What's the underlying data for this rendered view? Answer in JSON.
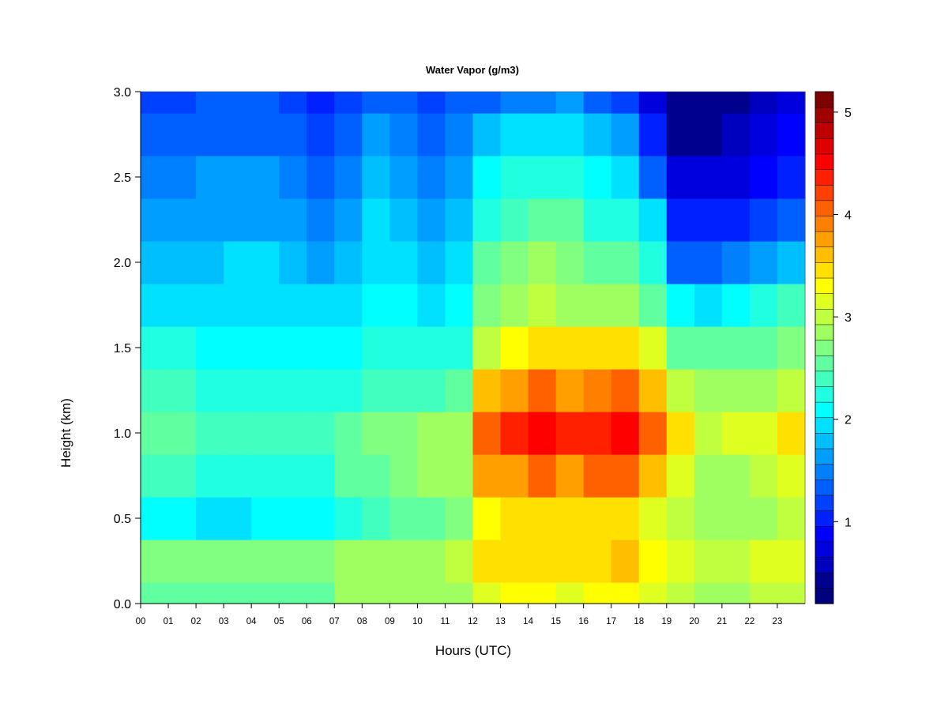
{
  "chart_data": {
    "type": "heatmap",
    "title": "Water Vapor (g/m3)",
    "xlabel": "Hours (UTC)",
    "ylabel": "Height (km)",
    "xlim": [
      0,
      24
    ],
    "ylim": [
      0,
      3.0
    ],
    "x_ticks": [
      "00",
      "01",
      "02",
      "03",
      "04",
      "05",
      "06",
      "07",
      "08",
      "09",
      "10",
      "11",
      "12",
      "13",
      "14",
      "15",
      "16",
      "17",
      "18",
      "19",
      "20",
      "21",
      "22",
      "23"
    ],
    "y_ticks": [
      "0.0",
      "0.5",
      "1.0",
      "1.5",
      "2.0",
      "2.5",
      "3.0"
    ],
    "colorbar": {
      "min": 0.2,
      "max": 5.2,
      "ticks": [
        "1",
        "2",
        "3",
        "4",
        "5"
      ],
      "levels": [
        "#00007f",
        "#00008f",
        "#0000bf",
        "#0000df",
        "#0000ff",
        "#0020ff",
        "#0040ff",
        "#0060ff",
        "#0080ff",
        "#009fff",
        "#00bfff",
        "#00e0ff",
        "#00ffff",
        "#20ffdf",
        "#40ffbf",
        "#60ff9f",
        "#80ff80",
        "#9fff60",
        "#c0ff40",
        "#dfff20",
        "#ffff00",
        "#ffe000",
        "#ffbf00",
        "#ff9f00",
        "#ff8000",
        "#ff6000",
        "#ff4000",
        "#ff2000",
        "#ff0000",
        "#df0000",
        "#bf0000",
        "#9f0000",
        "#7f0000"
      ]
    },
    "hours": [
      0,
      1,
      2,
      3,
      4,
      5,
      6,
      7,
      8,
      9,
      10,
      11,
      12,
      13,
      14,
      15,
      16,
      17,
      18,
      19,
      20,
      21,
      22,
      23
    ],
    "heights": [
      0.0,
      0.25,
      0.5,
      0.75,
      1.0,
      1.25,
      1.5,
      1.75,
      2.0,
      2.25,
      2.5,
      2.75,
      3.0
    ],
    "values": [
      [
        2.6,
        2.7,
        2.1,
        2.4,
        2.5,
        2.4,
        2.2,
        2.0,
        1.8,
        1.6,
        1.5,
        1.3,
        1.2
      ],
      [
        2.6,
        2.7,
        2.1,
        2.4,
        2.5,
        2.4,
        2.2,
        2.0,
        1.8,
        1.6,
        1.5,
        1.3,
        1.2
      ],
      [
        2.6,
        2.7,
        2.0,
        2.3,
        2.4,
        2.3,
        2.1,
        2.0,
        1.8,
        1.7,
        1.6,
        1.4,
        1.3
      ],
      [
        2.6,
        2.7,
        2.0,
        2.3,
        2.4,
        2.3,
        2.1,
        2.0,
        1.9,
        1.7,
        1.6,
        1.4,
        1.3
      ],
      [
        2.6,
        2.7,
        2.1,
        2.3,
        2.4,
        2.3,
        2.1,
        2.0,
        1.9,
        1.7,
        1.6,
        1.4,
        1.3
      ],
      [
        2.6,
        2.7,
        2.1,
        2.3,
        2.4,
        2.2,
        2.1,
        2.0,
        1.8,
        1.6,
        1.5,
        1.3,
        1.2
      ],
      [
        2.6,
        2.7,
        2.1,
        2.3,
        2.4,
        2.2,
        2.1,
        1.9,
        1.7,
        1.5,
        1.3,
        1.2,
        1.0
      ],
      [
        2.8,
        2.8,
        2.3,
        2.5,
        2.5,
        2.3,
        2.1,
        1.9,
        1.8,
        1.7,
        1.5,
        1.3,
        1.2
      ],
      [
        2.8,
        2.9,
        2.4,
        2.6,
        2.7,
        2.4,
        2.2,
        2.1,
        2.0,
        1.9,
        1.8,
        1.6,
        1.4
      ],
      [
        2.8,
        2.9,
        2.5,
        2.7,
        2.7,
        2.4,
        2.2,
        2.1,
        2.0,
        1.8,
        1.7,
        1.5,
        1.3
      ],
      [
        2.8,
        2.9,
        2.6,
        2.8,
        2.8,
        2.4,
        2.2,
        2.0,
        1.8,
        1.6,
        1.5,
        1.4,
        1.2
      ],
      [
        2.9,
        3.0,
        2.7,
        2.9,
        2.9,
        2.5,
        2.3,
        2.1,
        1.9,
        1.8,
        1.6,
        1.5,
        1.3
      ],
      [
        3.2,
        3.4,
        3.3,
        3.7,
        4.1,
        3.6,
        3.0,
        2.7,
        2.5,
        2.3,
        2.1,
        1.8,
        1.4
      ],
      [
        3.3,
        3.5,
        3.4,
        3.8,
        4.3,
        3.8,
        3.3,
        2.9,
        2.7,
        2.4,
        2.2,
        1.9,
        1.5
      ],
      [
        3.3,
        3.5,
        3.5,
        4.0,
        4.5,
        4.0,
        3.5,
        3.0,
        2.8,
        2.5,
        2.2,
        1.9,
        1.5
      ],
      [
        3.2,
        3.5,
        3.4,
        3.8,
        4.3,
        3.8,
        3.4,
        2.9,
        2.7,
        2.5,
        2.2,
        1.9,
        1.6
      ],
      [
        3.3,
        3.5,
        3.5,
        4.0,
        4.4,
        3.9,
        3.4,
        2.8,
        2.5,
        2.3,
        2.1,
        1.8,
        1.4
      ],
      [
        3.3,
        3.6,
        3.5,
        4.0,
        4.5,
        4.0,
        3.4,
        2.8,
        2.5,
        2.2,
        1.9,
        1.6,
        1.2
      ],
      [
        3.1,
        3.3,
        3.2,
        3.6,
        4.0,
        3.6,
        3.1,
        2.6,
        2.2,
        1.9,
        1.4,
        1.0,
        0.8
      ],
      [
        3.0,
        3.2,
        3.0,
        3.1,
        3.5,
        3.0,
        2.6,
        2.1,
        1.4,
        1.0,
        0.7,
        0.5,
        0.4
      ],
      [
        2.9,
        3.0,
        2.8,
        2.9,
        3.0,
        2.8,
        2.5,
        2.0,
        1.3,
        1.0,
        0.7,
        0.5,
        0.4
      ],
      [
        2.9,
        3.0,
        2.8,
        2.9,
        3.1,
        2.8,
        2.5,
        2.1,
        1.5,
        1.1,
        0.8,
        0.6,
        0.5
      ],
      [
        3.0,
        3.1,
        2.9,
        3.0,
        3.2,
        2.9,
        2.6,
        2.2,
        1.6,
        1.2,
        0.9,
        0.7,
        0.6
      ],
      [
        3.0,
        3.2,
        3.0,
        3.1,
        3.4,
        3.0,
        2.7,
        2.4,
        1.8,
        1.4,
        1.1,
        0.9,
        0.7
      ]
    ],
    "grid": false,
    "legend": "colorbar-right"
  }
}
